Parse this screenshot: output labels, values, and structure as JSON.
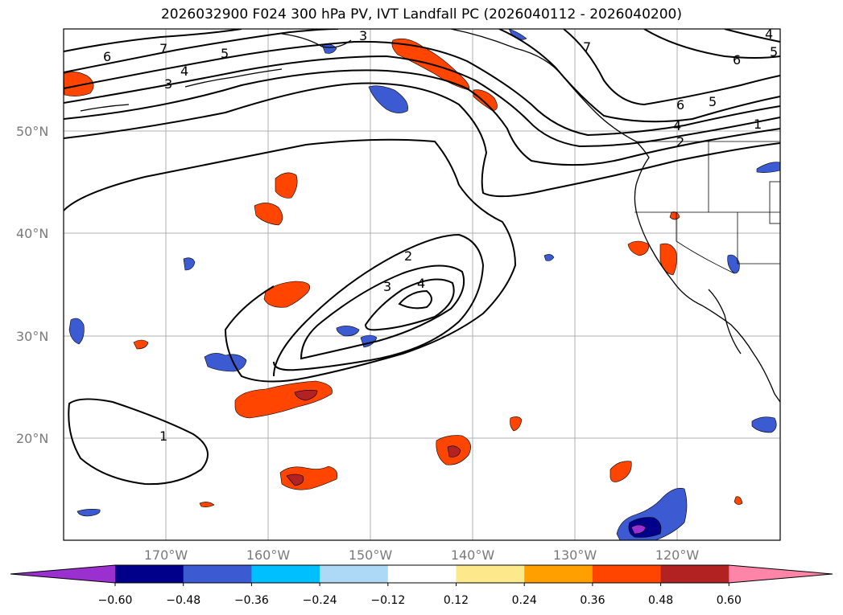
{
  "title": "2026032900 F024 300 hPa PV, IVT Landfall PC (2026040112 - 2026040200)",
  "lat_labels": [
    "50°N",
    "40°N",
    "30°N",
    "20°N"
  ],
  "lon_labels": [
    "170°W",
    "160°W",
    "150°W",
    "140°W",
    "130°W",
    "120°W"
  ],
  "contour_labels": [
    "6",
    "7",
    "5",
    "4",
    "3",
    "3",
    "7",
    "6",
    "5",
    "6",
    "4",
    "1",
    "2",
    "2",
    "3",
    "4",
    "1",
    "4",
    "5"
  ],
  "colorbar": {
    "tick_labels": [
      "−0.60",
      "−0.48",
      "−0.36",
      "−0.24",
      "−0.12",
      "0.12",
      "0.24",
      "0.36",
      "0.48",
      "0.60"
    ],
    "colors": [
      "#9b30d0",
      "#00008b",
      "#3c5ad2",
      "#00bfff",
      "#add8f6",
      "#ffffff",
      "#fde98c",
      "#ffa000",
      "#ff4500",
      "#b22222",
      "#ff85a8"
    ]
  },
  "chart_data": {
    "type": "map",
    "title": "2026032900 F024 300 hPa PV, IVT Landfall PC (2026040112 - 2026040200)",
    "projection": "PlateCarree",
    "lon_range": [
      -180,
      -110
    ],
    "lat_range": [
      10,
      60
    ],
    "contour_field": "300 hPa PV",
    "contour_levels": [
      1,
      2,
      3,
      4,
      5,
      6,
      7
    ],
    "fill_field": "IVT Landfall PC",
    "fill_levels": [
      -0.6,
      -0.48,
      -0.36,
      -0.24,
      -0.12,
      0.12,
      0.24,
      0.36,
      0.48,
      0.6
    ]
  }
}
